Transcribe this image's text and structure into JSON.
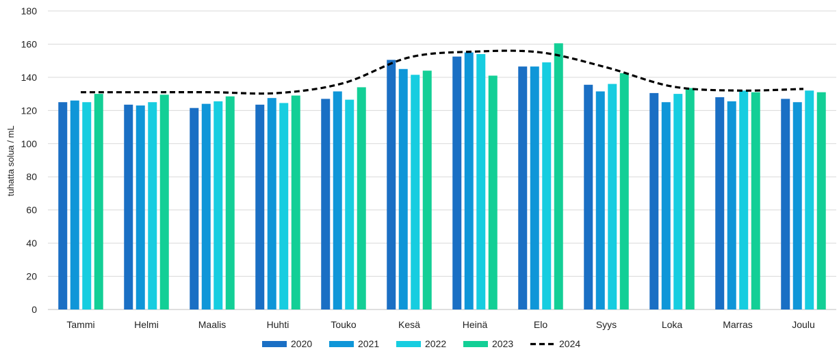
{
  "chart_data": {
    "type": "bar",
    "ylabel": "tuhatta solua / mL",
    "ylim": [
      0,
      180
    ],
    "yticks": [
      0,
      20,
      40,
      60,
      80,
      100,
      120,
      140,
      160,
      180
    ],
    "grid": true,
    "legend_position": "bottom",
    "categories": [
      "Tammi",
      "Helmi",
      "Maalis",
      "Huhti",
      "Touko",
      "Kesä",
      "Heinä",
      "Elo",
      "Syys",
      "Loka",
      "Marras",
      "Joulu"
    ],
    "series": [
      {
        "name": "2020",
        "kind": "bar",
        "color": "#1a6fc4",
        "values": [
          125,
          123.5,
          121.5,
          123.5,
          127,
          150.5,
          152.5,
          146.5,
          135.5,
          130.5,
          128,
          127
        ]
      },
      {
        "name": "2021",
        "kind": "bar",
        "color": "#0f96d8",
        "values": [
          126,
          123,
          124,
          127.5,
          131.5,
          145,
          155,
          146.5,
          131.5,
          125,
          125.5,
          125
        ]
      },
      {
        "name": "2022",
        "kind": "bar",
        "color": "#17cde0",
        "values": [
          125,
          125,
          125.5,
          124.5,
          126.5,
          141.5,
          154,
          149,
          136,
          130,
          132,
          132
        ]
      },
      {
        "name": "2023",
        "kind": "bar",
        "color": "#13cf96",
        "values": [
          130,
          129.5,
          128.5,
          129,
          134,
          144,
          141,
          160.5,
          142.5,
          133.5,
          131,
          131
        ]
      },
      {
        "name": "2024",
        "kind": "line",
        "color": "#000000",
        "dash": true,
        "values": [
          131,
          131,
          131,
          130.5,
          136.5,
          152,
          155.5,
          155,
          146,
          134.5,
          132,
          133
        ]
      }
    ]
  }
}
